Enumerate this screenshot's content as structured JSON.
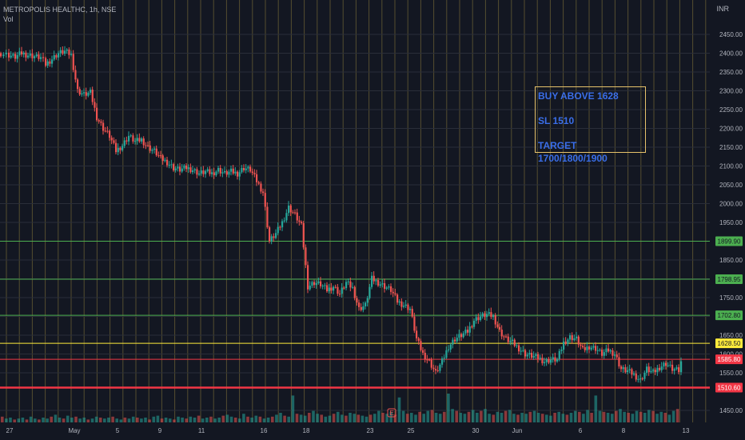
{
  "header": {
    "symbol_line": "METROPOLIS HEALTHC, 1h, NSE",
    "volume_label": "Vol",
    "currency": "INR"
  },
  "annotation": {
    "line1": "BUY ABOVE 1628",
    "line2": "SL 1510",
    "line3": "TARGET 1700/1800/1900"
  },
  "colors": {
    "background": "#131722",
    "up": "#26a69a",
    "down": "#ef5350",
    "vertical_grid": "#8a7b3a",
    "level_green": "#4caf50",
    "level_yellow": "#ffeb3b",
    "level_red": "#f23645",
    "annotation_border": "#e7c26a",
    "annotation_text": "#3a6ee8"
  },
  "chart_data": {
    "type": "candlestick",
    "title": "METROPOLIS HEALTHC, 1h, NSE",
    "ylabel": "INR",
    "ylim": [
      1430,
      2480
    ],
    "y_ticks": [
      "2450.00",
      "2400.00",
      "2350.00",
      "2300.00",
      "2250.00",
      "2200.00",
      "2150.00",
      "2100.00",
      "2050.00",
      "2000.00",
      "1950.00",
      "1900.00",
      "1850.00",
      "1800.00",
      "1750.00",
      "1700.00",
      "1650.00",
      "1600.00",
      "1550.00",
      "1450.00"
    ],
    "x_ticks": [
      "27",
      "May",
      "5",
      "9",
      "11",
      "16",
      "18",
      "23",
      "25",
      "30",
      "Jun",
      "6",
      "8",
      "13"
    ],
    "levels": [
      {
        "value": 1899.9,
        "label": "1899.90",
        "color": "#4caf50"
      },
      {
        "value": 1798.95,
        "label": "1798.95",
        "color": "#4caf50"
      },
      {
        "value": 1702.8,
        "label": "1702.80",
        "color": "#4caf50"
      },
      {
        "value": 1628.5,
        "label": "1628.50",
        "color": "#ffeb3b"
      },
      {
        "value": 1585.8,
        "label": "1585.80",
        "color": "#f23645"
      },
      {
        "value": 1510.6,
        "label": "1510.60",
        "color": "#f23645"
      }
    ],
    "close_path": [
      [
        0,
        2400
      ],
      [
        10,
        2395
      ],
      [
        18,
        2390
      ],
      [
        26,
        2400
      ],
      [
        34,
        2395
      ],
      [
        42,
        2392
      ],
      [
        50,
        2388
      ],
      [
        56,
        2370
      ],
      [
        64,
        2385
      ],
      [
        72,
        2400
      ],
      [
        80,
        2405
      ],
      [
        88,
        2395
      ],
      [
        96,
        2300
      ],
      [
        104,
        2290
      ],
      [
        112,
        2295
      ],
      [
        120,
        2230
      ],
      [
        128,
        2200
      ],
      [
        136,
        2180
      ],
      [
        144,
        2140
      ],
      [
        152,
        2155
      ],
      [
        160,
        2180
      ],
      [
        168,
        2165
      ],
      [
        176,
        2170
      ],
      [
        184,
        2150
      ],
      [
        192,
        2140
      ],
      [
        200,
        2120
      ],
      [
        208,
        2110
      ],
      [
        216,
        2095
      ],
      [
        224,
        2090
      ],
      [
        232,
        2095
      ],
      [
        240,
        2090
      ],
      [
        248,
        2080
      ],
      [
        256,
        2085
      ],
      [
        264,
        2080
      ],
      [
        272,
        2090
      ],
      [
        280,
        2080
      ],
      [
        288,
        2085
      ],
      [
        296,
        2080
      ],
      [
        304,
        2095
      ],
      [
        312,
        2090
      ],
      [
        320,
        2060
      ],
      [
        328,
        2030
      ],
      [
        336,
        1900
      ],
      [
        344,
        1920
      ],
      [
        352,
        1950
      ],
      [
        360,
        1990
      ],
      [
        368,
        1970
      ],
      [
        376,
        1940
      ],
      [
        384,
        1780
      ],
      [
        392,
        1790
      ],
      [
        400,
        1785
      ],
      [
        408,
        1770
      ],
      [
        416,
        1780
      ],
      [
        424,
        1760
      ],
      [
        432,
        1790
      ],
      [
        440,
        1775
      ],
      [
        448,
        1720
      ],
      [
        456,
        1730
      ],
      [
        464,
        1800
      ],
      [
        472,
        1790
      ],
      [
        480,
        1780
      ],
      [
        488,
        1770
      ],
      [
        496,
        1740
      ],
      [
        504,
        1730
      ],
      [
        512,
        1720
      ],
      [
        520,
        1640
      ],
      [
        528,
        1600
      ],
      [
        536,
        1580
      ],
      [
        544,
        1550
      ],
      [
        552,
        1580
      ],
      [
        560,
        1620
      ],
      [
        568,
        1640
      ],
      [
        576,
        1650
      ],
      [
        584,
        1660
      ],
      [
        592,
        1690
      ],
      [
        600,
        1700
      ],
      [
        608,
        1705
      ],
      [
        616,
        1700
      ],
      [
        624,
        1660
      ],
      [
        632,
        1640
      ],
      [
        640,
        1630
      ],
      [
        648,
        1615
      ],
      [
        656,
        1600
      ],
      [
        664,
        1595
      ],
      [
        672,
        1590
      ],
      [
        680,
        1580
      ],
      [
        688,
        1585
      ],
      [
        696,
        1585
      ],
      [
        704,
        1630
      ],
      [
        712,
        1645
      ],
      [
        720,
        1640
      ],
      [
        728,
        1610
      ],
      [
        736,
        1620
      ],
      [
        744,
        1615
      ],
      [
        752,
        1600
      ],
      [
        760,
        1610
      ],
      [
        768,
        1600
      ],
      [
        776,
        1560
      ],
      [
        784,
        1555
      ],
      [
        792,
        1545
      ],
      [
        800,
        1530
      ],
      [
        808,
        1560
      ],
      [
        816,
        1550
      ],
      [
        824,
        1565
      ],
      [
        832,
        1575
      ],
      [
        840,
        1560
      ],
      [
        848,
        1555
      ],
      [
        854,
        1600
      ]
    ],
    "volume": [
      6,
      4,
      5,
      3,
      4,
      5,
      3,
      6,
      4,
      3,
      5,
      4,
      6,
      8,
      5,
      4,
      7,
      5,
      6,
      4,
      5,
      3,
      4,
      6,
      5,
      4,
      5,
      6,
      4,
      3,
      5,
      4,
      6,
      5,
      4,
      5,
      3,
      6,
      7,
      4,
      5,
      4,
      3,
      6,
      5,
      4,
      6,
      5,
      7,
      4,
      5,
      6,
      4,
      5,
      7,
      8,
      6,
      5,
      4,
      9,
      6,
      5,
      7,
      6,
      4,
      5,
      6,
      8,
      10,
      7,
      6,
      28,
      9,
      8,
      7,
      10,
      12,
      9,
      8,
      6,
      7,
      9,
      11,
      8,
      7,
      10,
      9,
      8,
      7,
      6,
      8,
      9,
      12,
      10,
      9,
      11,
      8,
      26,
      12,
      9,
      10,
      8,
      11,
      9,
      12,
      13,
      10,
      9,
      11,
      30,
      14,
      12,
      10,
      9,
      11,
      13,
      10,
      12,
      14,
      9,
      8,
      11,
      10,
      12,
      13,
      9,
      8,
      10,
      9,
      11,
      12,
      10,
      9,
      8,
      7,
      10,
      11,
      9,
      8,
      10,
      12,
      11,
      9,
      13,
      10,
      28,
      12,
      11,
      10,
      9,
      12,
      14,
      11,
      10,
      9,
      12,
      11,
      10,
      13,
      12,
      9,
      11,
      10,
      8,
      12,
      14
    ]
  }
}
